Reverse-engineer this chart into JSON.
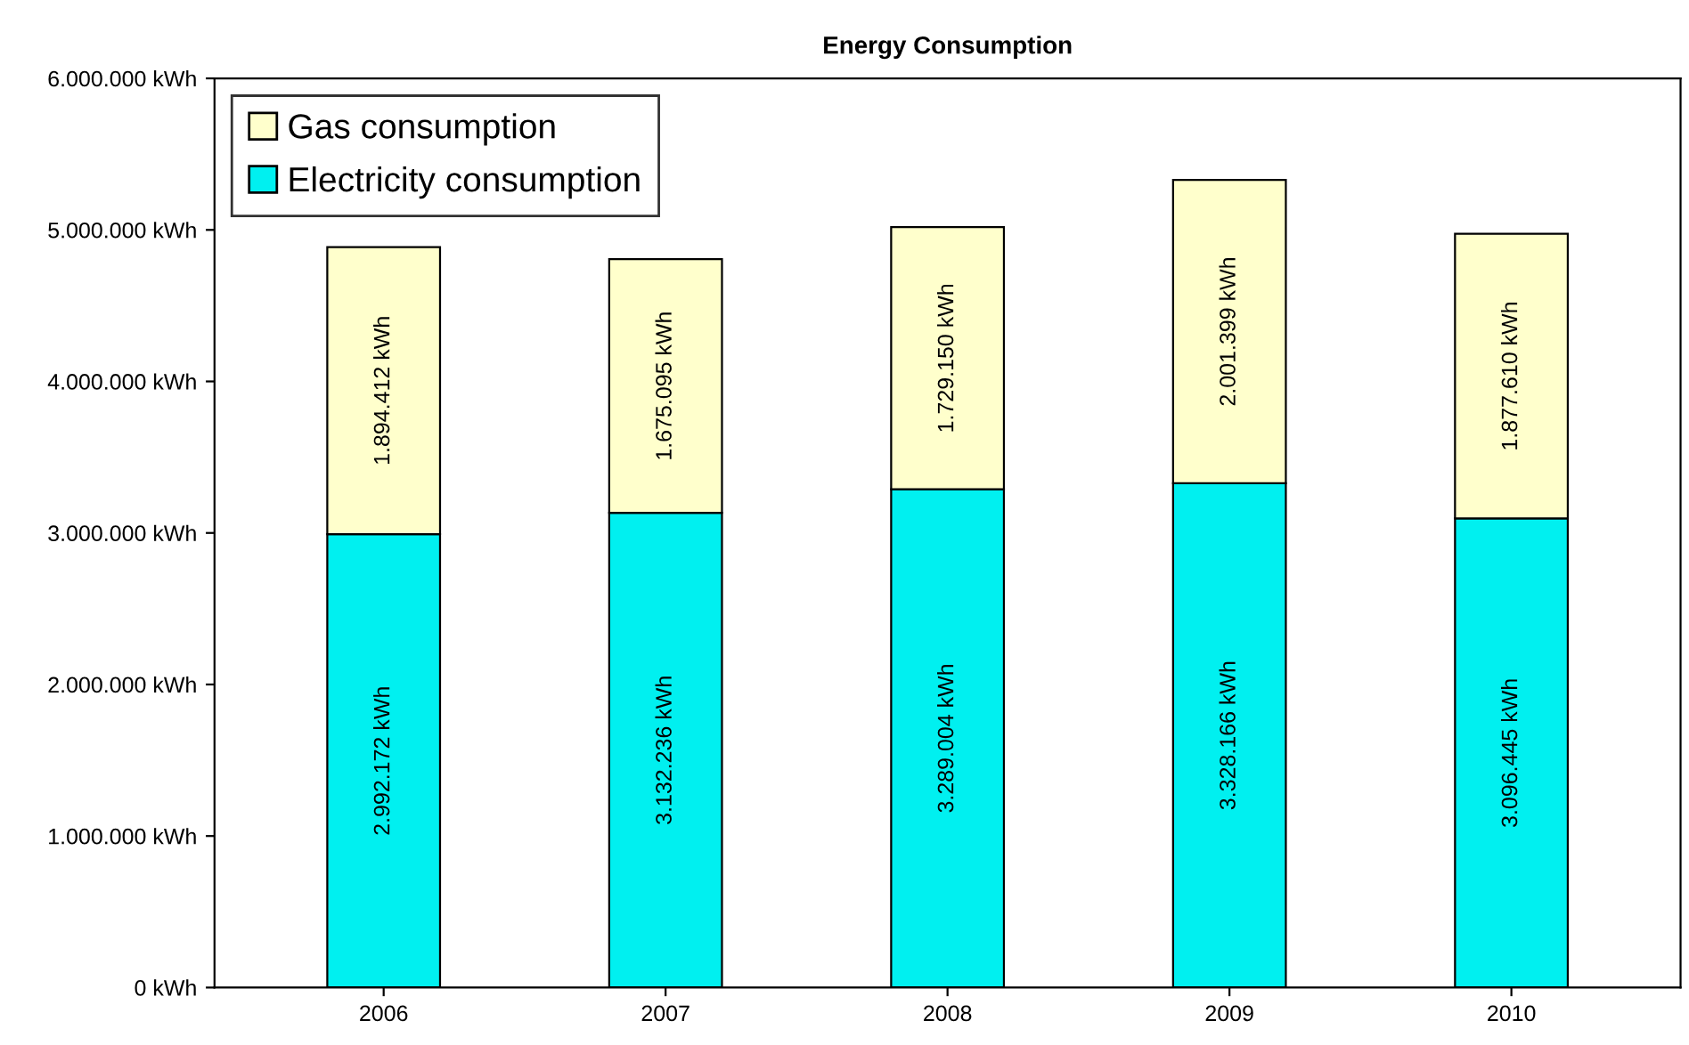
{
  "chart_data": {
    "type": "bar",
    "title": "Energy Consumption",
    "stacked": true,
    "categories": [
      "2006",
      "2007",
      "2008",
      "2009",
      "2010"
    ],
    "series": [
      {
        "name": "Electricity consumption",
        "color": "#00f0f0",
        "values": [
          2992172,
          3132236,
          3289004,
          3328166,
          3096445
        ],
        "value_labels": [
          "2.992.172 kWh",
          "3.132.236 kWh",
          "3.289.004 kWh",
          "3.328.166 kWh",
          "3.096.445 kWh"
        ]
      },
      {
        "name": "Gas consumption",
        "color": "#ffffcc",
        "values": [
          1894412,
          1675095,
          1729150,
          2001399,
          1877610
        ],
        "value_labels": [
          "1.894.412 kWh",
          "1.675.095 kWh",
          "1.729.150 kWh",
          "2.001.399 kWh",
          "1.877.610 kWh"
        ]
      }
    ],
    "ylim": [
      0,
      6000000
    ],
    "yticks": [
      {
        "value": 0,
        "label": "0 kWh"
      },
      {
        "value": 1000000,
        "label": "1.000.000 kWh"
      },
      {
        "value": 2000000,
        "label": "2.000.000 kWh"
      },
      {
        "value": 3000000,
        "label": "3.000.000 kWh"
      },
      {
        "value": 4000000,
        "label": "4.000.000 kWh"
      },
      {
        "value": 5000000,
        "label": "5.000.000 kWh"
      },
      {
        "value": 6000000,
        "label": "6.000.000 kWh"
      }
    ],
    "grid": false,
    "legend": "top left"
  }
}
